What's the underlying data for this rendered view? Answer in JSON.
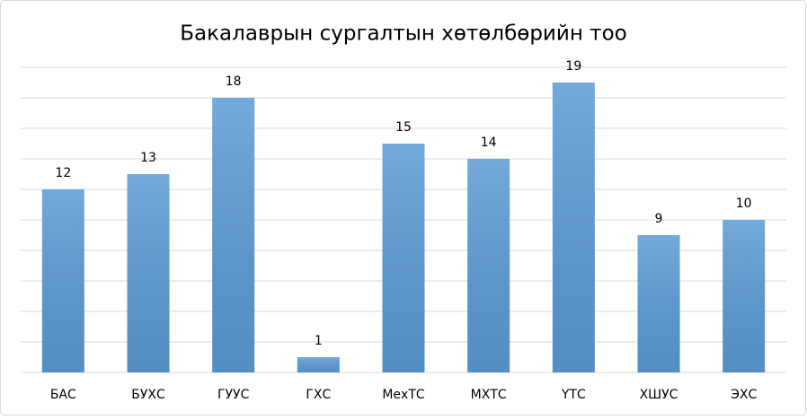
{
  "chart_data": {
    "type": "bar",
    "title": "Бакалаврын сургалтын хөтөлбөрийн тоо",
    "categories": [
      "БАС",
      "БУХС",
      "ГУУС",
      "ГХС",
      "МехТС",
      "МХТС",
      "ҮТС",
      "ХШУС",
      "ЭХС"
    ],
    "values": [
      12,
      13,
      18,
      1,
      15,
      14,
      19,
      9,
      10
    ],
    "color": "#5b9bd5",
    "ylim": [
      0,
      20
    ],
    "yticks": [
      0,
      2,
      4,
      6,
      8,
      10,
      12,
      14,
      16,
      18,
      20
    ],
    "grid": true
  }
}
